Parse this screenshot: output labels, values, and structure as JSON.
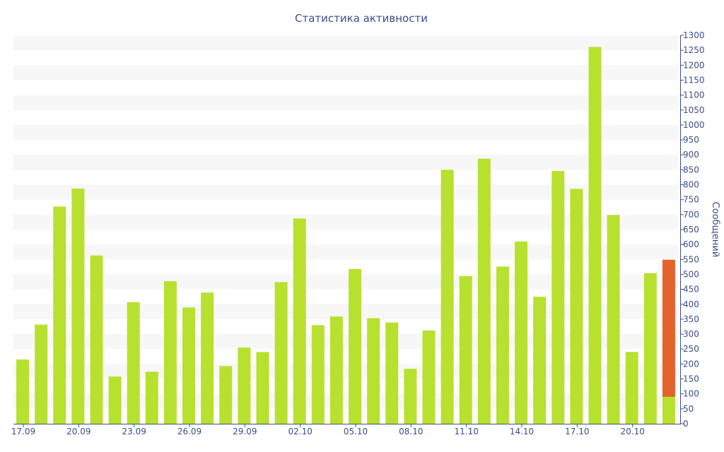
{
  "chart_data": {
    "type": "bar",
    "title": "Статистика активности",
    "ylabel": "Сообщений",
    "xlabel": "",
    "ylim": [
      0,
      1300
    ],
    "y_ticks": [
      0,
      50,
      100,
      150,
      200,
      250,
      300,
      350,
      400,
      450,
      500,
      550,
      600,
      650,
      700,
      750,
      800,
      850,
      900,
      950,
      1000,
      1050,
      1100,
      1150,
      1200,
      1250,
      1300
    ],
    "y_axis_position": "right",
    "grid": "horizontal bands",
    "x_tick_labels": [
      "17.09",
      "20.09",
      "23.09",
      "26.09",
      "29.09",
      "02.10",
      "05.10",
      "08.10",
      "11.10",
      "14.10",
      "17.10",
      "20.10"
    ],
    "colors": {
      "bar": "#b8e02f",
      "highlight": "#e2632d",
      "band": "#f7f7f7",
      "axis": "#3b4e8c"
    },
    "series": [
      {
        "values": [
          215,
          332,
          727,
          787,
          563,
          158,
          407,
          174,
          477,
          389,
          439,
          193,
          255,
          240,
          474,
          687,
          330,
          359,
          518,
          353,
          339,
          184,
          312,
          850,
          494,
          887,
          526,
          610,
          425,
          846,
          786,
          1261,
          699,
          240,
          504,
          90
        ]
      },
      {
        "values": [
          0,
          0,
          0,
          0,
          0,
          0,
          0,
          0,
          0,
          0,
          0,
          0,
          0,
          0,
          0,
          0,
          0,
          0,
          0,
          0,
          0,
          0,
          0,
          0,
          0,
          0,
          0,
          0,
          0,
          0,
          0,
          0,
          0,
          0,
          0,
          459
        ]
      }
    ]
  }
}
